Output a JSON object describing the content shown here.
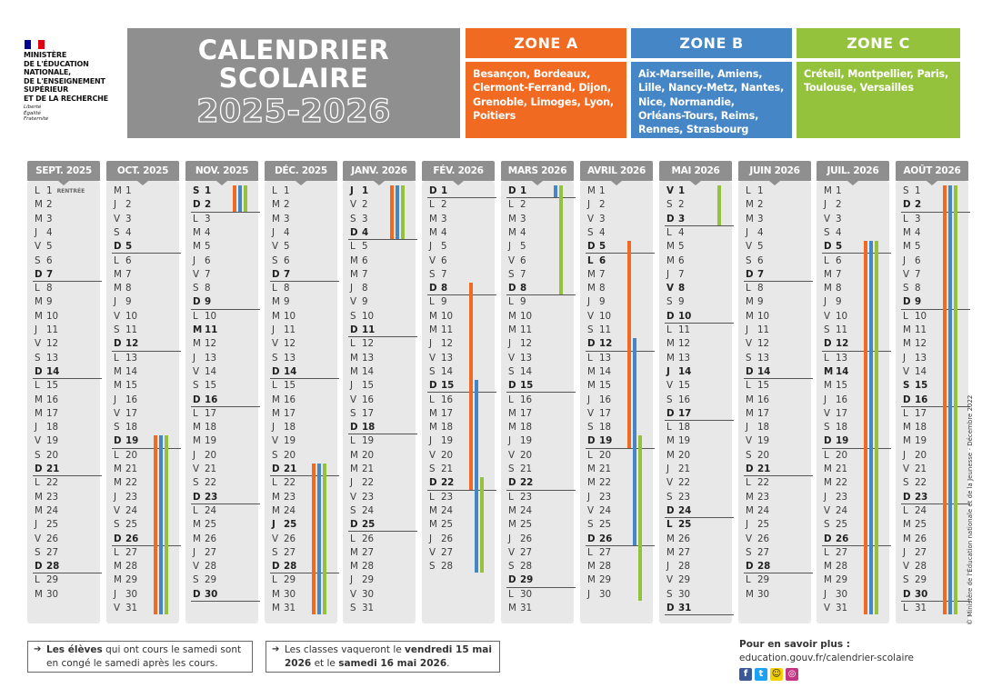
{
  "ministry": {
    "lines": [
      "MINISTÈRE",
      "DE L'ÉDUCATION",
      "NATIONALE,",
      "DE L'ENSEIGNEMENT",
      "SUPÉRIEUR",
      "ET DE LA RECHERCHE"
    ],
    "motto": [
      "Liberté",
      "Égalité",
      "Fraternité"
    ],
    "flag_colors": [
      "#000091",
      "#ffffff",
      "#e1000f"
    ]
  },
  "title": {
    "line1": "CALENDRIER",
    "line2": "SCOLAIRE",
    "years": "2025-2026"
  },
  "zones": [
    {
      "name": "ZONE A",
      "color": "#f06a22",
      "cities": "Besançon, Bordeaux, Clermont-Ferrand, Dijon, Grenoble, Limoges, Lyon, Poitiers"
    },
    {
      "name": "ZONE B",
      "color": "#4586c6",
      "cities": "Aix-Marseille, Amiens, Lille, Nancy-Metz, Nantes, Nice, Normandie, Orléans-Tours, Reims, Rennes, Strasbourg"
    },
    {
      "name": "ZONE C",
      "color": "#95c23d",
      "cities": "Créteil, Montpellier, Paris, Toulouse, Versailles"
    }
  ],
  "rentree_label": "RENTRÉE",
  "months": [
    {
      "name": "SEPT. 2025",
      "days": 30,
      "start": 1,
      "holidays": []
    },
    {
      "name": "OCT. 2025",
      "days": 31,
      "start": 3,
      "holidays": []
    },
    {
      "name": "NOV. 2025",
      "days": 30,
      "start": 6,
      "holidays": [
        1,
        11
      ]
    },
    {
      "name": "DÉC. 2025",
      "days": 31,
      "start": 1,
      "holidays": [
        25
      ]
    },
    {
      "name": "JANV. 2026",
      "days": 31,
      "start": 4,
      "holidays": [
        1
      ]
    },
    {
      "name": "FÉV. 2026",
      "days": 28,
      "start": 0,
      "holidays": []
    },
    {
      "name": "MARS 2026",
      "days": 31,
      "start": 0,
      "holidays": []
    },
    {
      "name": "AVRIL 2026",
      "days": 30,
      "start": 3,
      "holidays": [
        6
      ]
    },
    {
      "name": "MAI 2026",
      "days": 31,
      "start": 5,
      "holidays": [
        1,
        8,
        14,
        25
      ]
    },
    {
      "name": "JUIN 2026",
      "days": 30,
      "start": 1,
      "holidays": []
    },
    {
      "name": "JUIL. 2026",
      "days": 31,
      "start": 3,
      "holidays": [
        14
      ]
    },
    {
      "name": "AOÛT 2026",
      "days": 31,
      "start": 6,
      "holidays": [
        15
      ]
    }
  ],
  "day_letters": [
    "D",
    "L",
    "M",
    "M",
    "J",
    "V",
    "S"
  ],
  "periods": [
    {
      "zones": [
        "A",
        "B",
        "C"
      ],
      "month": 1,
      "from": 19,
      "to": 31
    },
    {
      "zones": [
        "A",
        "B",
        "C"
      ],
      "month": 2,
      "from": 1,
      "to": 2
    },
    {
      "zones": [
        "A",
        "B",
        "C"
      ],
      "month": 3,
      "from": 21,
      "to": 31
    },
    {
      "zones": [
        "A",
        "B",
        "C"
      ],
      "month": 4,
      "from": 1,
      "to": 4
    },
    {
      "zones": [
        "A"
      ],
      "month": 5,
      "from": 8,
      "to": 22
    },
    {
      "zones": [
        "B"
      ],
      "month": 5,
      "from": 15,
      "to": 28
    },
    {
      "zones": [
        "C"
      ],
      "month": 5,
      "from": 22,
      "to": 28
    },
    {
      "zones": [
        "B"
      ],
      "month": 6,
      "from": 1,
      "to": 1
    },
    {
      "zones": [
        "C"
      ],
      "month": 6,
      "from": 1,
      "to": 8
    },
    {
      "zones": [
        "A"
      ],
      "month": 7,
      "from": 5,
      "to": 19
    },
    {
      "zones": [
        "B"
      ],
      "month": 7,
      "from": 12,
      "to": 26
    },
    {
      "zones": [
        "C"
      ],
      "month": 7,
      "from": 19,
      "to": 30
    },
    {
      "zones": [
        "C"
      ],
      "month": 8,
      "from": 1,
      "to": 3
    },
    {
      "zones": [
        "A",
        "B",
        "C"
      ],
      "month": 10,
      "from": 5,
      "to": 31
    },
    {
      "zones": [
        "A",
        "B",
        "C"
      ],
      "month": 11,
      "from": 1,
      "to": 31
    }
  ],
  "notes": [
    {
      "bold": "Les élèves",
      "text": " qui ont cours le samedi sont en congé le samedi après les cours."
    },
    {
      "pre": "Les classes vaqueront le ",
      "bold": "vendredi 15 mai 2026",
      "mid": " et le ",
      "bold2": "samedi 16 mai 2026",
      "post": "."
    }
  ],
  "more": {
    "heading": "Pour en savoir plus :",
    "url": "education.gouv.fr/calendrier-scolaire"
  },
  "copyright": "© Ministère de l'Éducation nationale et de la Jeunesse - Décembre 2022"
}
